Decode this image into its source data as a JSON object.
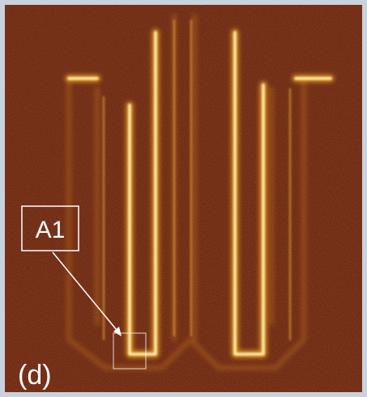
{
  "labels": {
    "annotation": "A1",
    "panel": "(d)"
  }
}
